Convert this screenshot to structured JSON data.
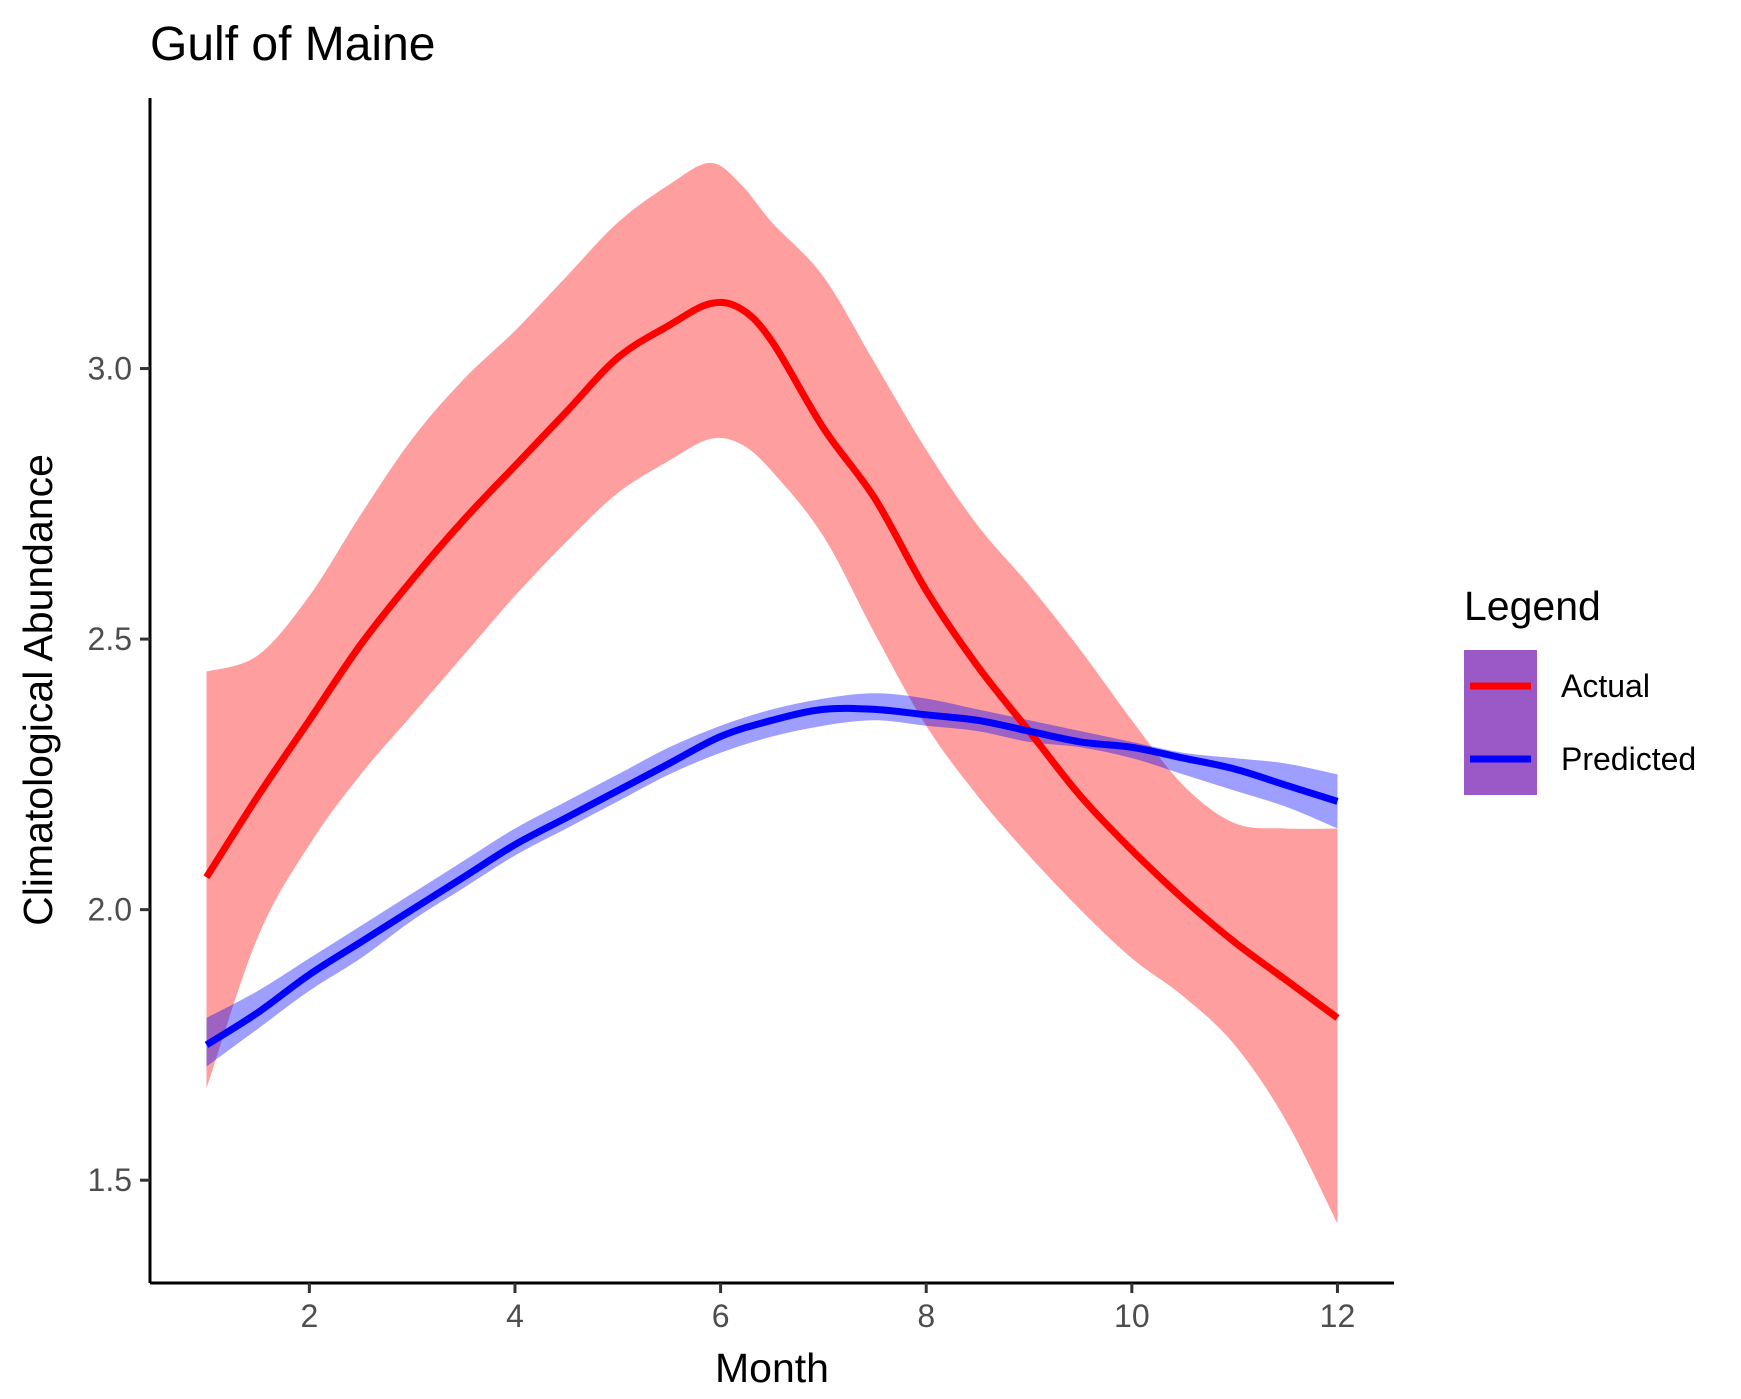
{
  "chart_data": {
    "type": "line",
    "title": "Gulf of Maine",
    "xlabel": "Month",
    "ylabel": "Climatological Abundance",
    "xlim": [
      0.45,
      12.55
    ],
    "ylim": [
      1.31,
      3.5
    ],
    "x_ticks": [
      2,
      4,
      6,
      8,
      10,
      12
    ],
    "x_tick_labels": [
      "2",
      "4",
      "6",
      "8",
      "10",
      "12"
    ],
    "y_ticks": [
      1.5,
      2.0,
      2.5,
      3.0
    ],
    "y_tick_labels": [
      "1.5",
      "2.0",
      "2.5",
      "3.0"
    ],
    "grid": false,
    "legend": {
      "title": "Legend",
      "position": "right",
      "key_fill": "#9b59c8"
    },
    "series": [
      {
        "name": "Actual",
        "color": "#ff0000",
        "ribbon_color": "#ff0000",
        "ribbon_opacity": 0.38,
        "x": [
          1,
          1.5,
          2,
          2.5,
          3,
          3.5,
          4,
          4.5,
          5,
          5.5,
          5.9,
          6.2,
          6.5,
          7,
          7.5,
          8,
          8.5,
          9,
          9.5,
          10,
          10.5,
          11,
          11.5,
          12
        ],
        "y": [
          2.06,
          2.21,
          2.35,
          2.49,
          2.61,
          2.72,
          2.82,
          2.92,
          3.02,
          3.08,
          3.12,
          3.11,
          3.05,
          2.89,
          2.76,
          2.59,
          2.45,
          2.33,
          2.21,
          2.11,
          2.02,
          1.94,
          1.87,
          1.8
        ],
        "lower": [
          1.67,
          1.95,
          2.12,
          2.25,
          2.36,
          2.47,
          2.58,
          2.68,
          2.77,
          2.83,
          2.87,
          2.86,
          2.81,
          2.69,
          2.51,
          2.34,
          2.21,
          2.1,
          2.0,
          1.91,
          1.84,
          1.75,
          1.61,
          1.42
        ],
        "upper": [
          2.44,
          2.47,
          2.58,
          2.73,
          2.87,
          2.98,
          3.07,
          3.17,
          3.27,
          3.34,
          3.38,
          3.34,
          3.27,
          3.17,
          3.01,
          2.85,
          2.71,
          2.6,
          2.48,
          2.35,
          2.23,
          2.16,
          2.15,
          2.15
        ]
      },
      {
        "name": "Predicted",
        "color": "#0000ff",
        "ribbon_color": "#0000ff",
        "ribbon_opacity": 0.38,
        "x": [
          1,
          1.5,
          2,
          2.5,
          3,
          3.5,
          4,
          4.5,
          5,
          5.5,
          6,
          6.5,
          7,
          7.5,
          8,
          8.5,
          9,
          9.5,
          10,
          10.5,
          11,
          11.5,
          12
        ],
        "y": [
          1.75,
          1.81,
          1.88,
          1.94,
          2.0,
          2.06,
          2.12,
          2.17,
          2.22,
          2.27,
          2.32,
          2.35,
          2.37,
          2.37,
          2.36,
          2.35,
          2.33,
          2.31,
          2.3,
          2.28,
          2.26,
          2.23,
          2.2
        ],
        "lower": [
          1.71,
          1.78,
          1.85,
          1.91,
          1.98,
          2.04,
          2.1,
          2.15,
          2.2,
          2.25,
          2.29,
          2.32,
          2.34,
          2.35,
          2.34,
          2.33,
          2.31,
          2.3,
          2.28,
          2.25,
          2.22,
          2.19,
          2.15
        ],
        "upper": [
          1.8,
          1.85,
          1.91,
          1.97,
          2.03,
          2.09,
          2.15,
          2.2,
          2.25,
          2.3,
          2.34,
          2.37,
          2.39,
          2.4,
          2.39,
          2.37,
          2.35,
          2.33,
          2.31,
          2.29,
          2.28,
          2.27,
          2.25
        ]
      }
    ]
  }
}
